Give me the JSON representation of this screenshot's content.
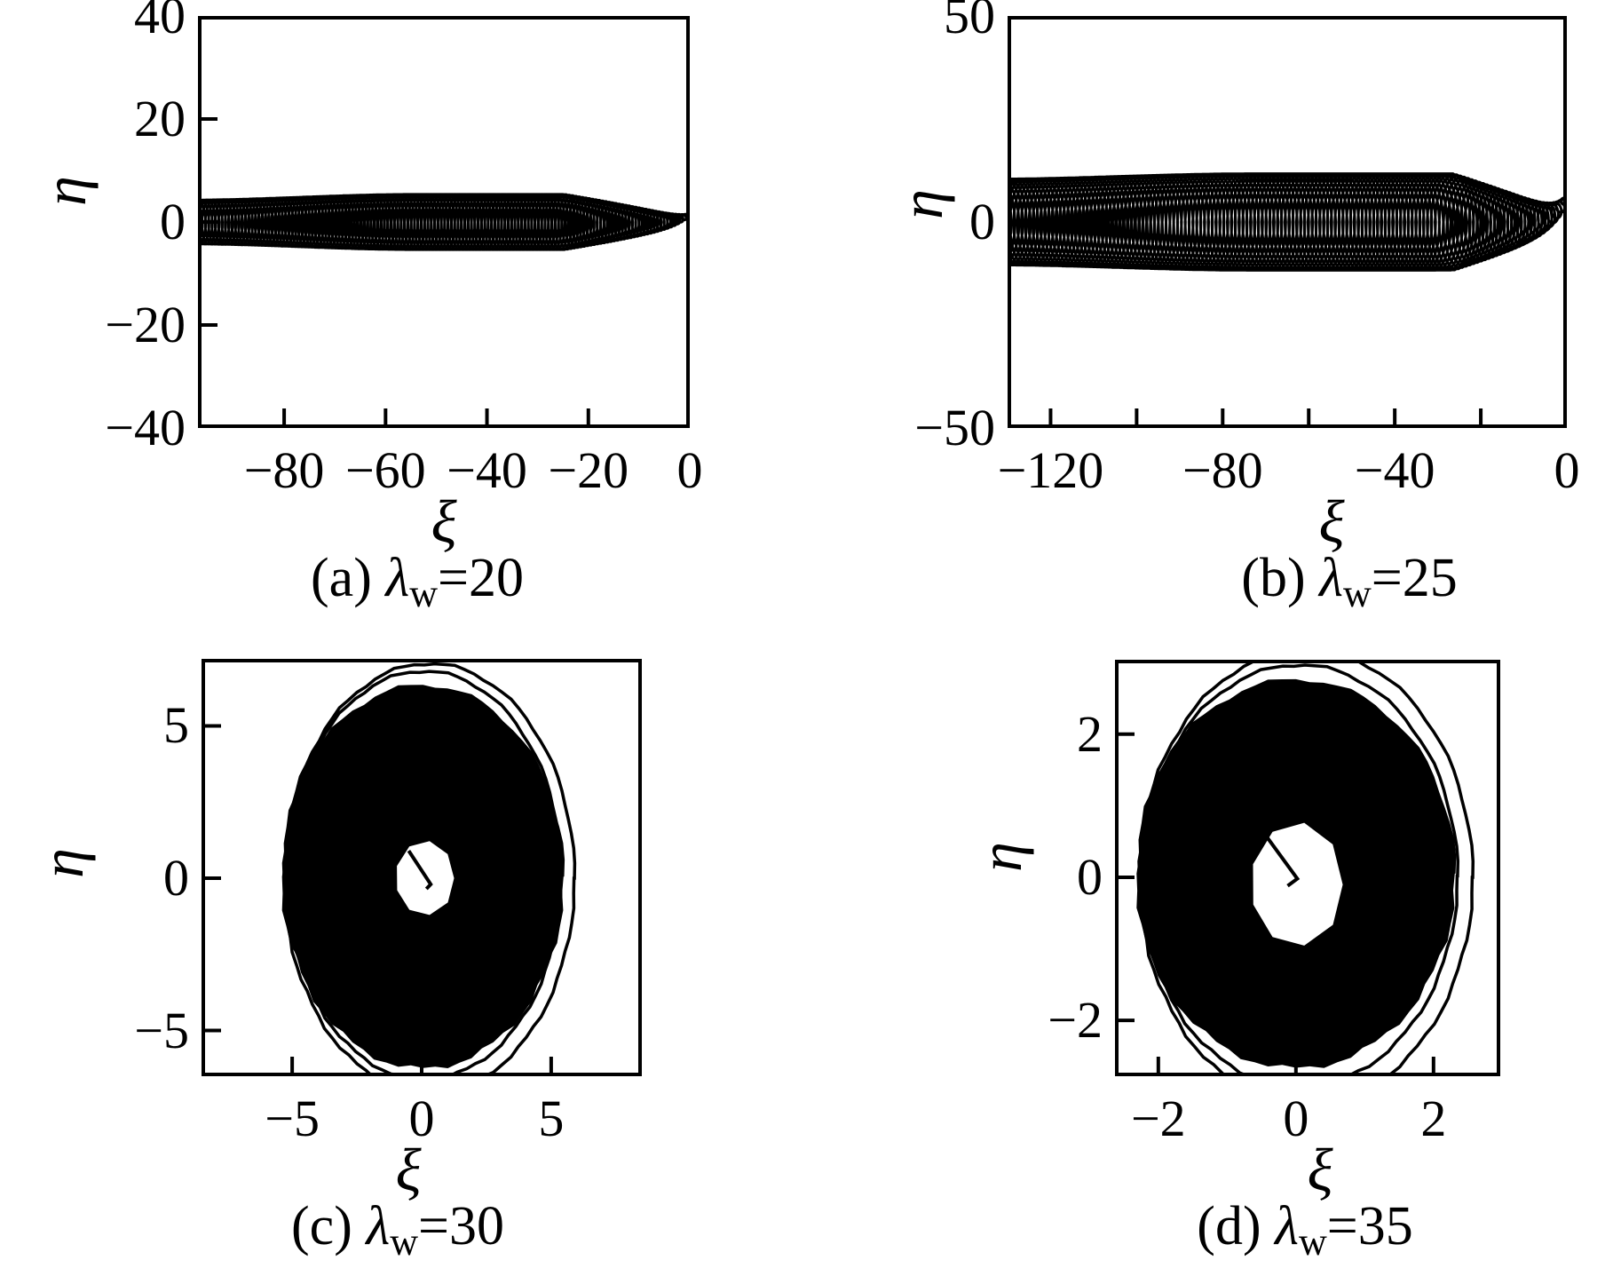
{
  "figure": {
    "background": "#ffffff",
    "ink": "#000000",
    "description": "Four-panel phase-plane plot (xi vs eta) of wave trajectories for different wiggler wavelengths lambda_w"
  },
  "chart_data": [
    {
      "panel": "a",
      "type": "line",
      "caption": {
        "idx": "(a) ",
        "lambda": "λ",
        "sub": "w",
        "value": "=20"
      },
      "caption_text": "(a) λw=20",
      "xlabel": "ξ",
      "ylabel": "η",
      "xlim": [
        -97,
        0
      ],
      "ylim": [
        -40,
        40
      ],
      "xticks": [
        -80,
        -60,
        -40,
        -20,
        0
      ],
      "xtick_labels": [
        "−80",
        "−60",
        "−40",
        "−20",
        "0"
      ],
      "yticks": [
        40,
        20,
        0,
        -20,
        -40
      ],
      "ytick_labels": [
        "40",
        "20",
        "0",
        "−20",
        "−40"
      ],
      "grid": false,
      "series": {
        "kind": "band-spiral",
        "description": "Trajectory enters at (0,≈1.5) and spirals leftward with growing oscillation amplitude, forming a dense black band about η=0 from ξ≈−97 to ξ≈−8 with half-width ≈5; individual loops resolved for ξ>−15",
        "drift_to": -99,
        "amplitude_max": 5.4,
        "amplitude_end": 4.3,
        "grow_frac": 0.25,
        "loops": 150,
        "loop_rx_a": 0.25,
        "loop_rx_b": 0.45,
        "start_eta": 1.5
      }
    },
    {
      "panel": "b",
      "type": "line",
      "caption": {
        "idx": "(b) ",
        "lambda": "λ",
        "sub": "w",
        "value": "=25"
      },
      "caption_text": "(b) λw=25",
      "xlabel": "ξ",
      "ylabel": "η",
      "xlim": [
        -130,
        0
      ],
      "ylim": [
        -50,
        50
      ],
      "xticks": [
        -120,
        -100,
        -80,
        -60,
        -40,
        -20,
        0
      ],
      "xtick_labels": [
        "−120",
        "",
        "−80",
        "",
        "−40",
        "",
        "0"
      ],
      "yticks": [
        50,
        0,
        -50
      ],
      "ytick_labels": [
        "50",
        "0",
        "−50"
      ],
      "grid": false,
      "series": {
        "kind": "band-spiral",
        "description": "Trajectory enters at (0,≈6) and spirals leftward with growing amplitude, forming a dense black band about η=0 from ξ≈−130 to ξ≈−10 with half-width ≈12",
        "drift_to": -134,
        "amplitude_max": 11.8,
        "amplitude_end": 10.5,
        "grow_frac": 0.2,
        "loops": 150,
        "loop_rx_a": 0.3,
        "loop_rx_b": 0.8,
        "start_eta": 6
      }
    },
    {
      "panel": "c",
      "type": "line",
      "caption": {
        "idx": "(c) ",
        "lambda": "λ",
        "sub": "w",
        "value": "=30"
      },
      "caption_text": "(c) λw=30",
      "xlabel": "ξ",
      "ylabel": "η",
      "xlim": [
        -8.5,
        8.5
      ],
      "ylim": [
        -6.5,
        7.2
      ],
      "xticks": [
        -5,
        0,
        5
      ],
      "xtick_labels": [
        "−5",
        "0",
        "5"
      ],
      "yticks": [
        5,
        0,
        -5
      ],
      "ytick_labels": [
        "5",
        "0",
        "−5"
      ],
      "grid": false,
      "series": {
        "kind": "annulus",
        "description": "Bounded quasi-periodic orbit filling a solid black annulus centred near the origin: outer semi-axes ≈5.5(ξ)×6.3(η), white hole ≈1.2 radius near (0.1,0); a short transient line runs from the centre; thin outer contour loops reach η≈±7",
        "center": [
          0.05,
          0.05
        ],
        "outer_rx": 5.45,
        "outer_ry": 6.3,
        "hole_center": [
          0.1,
          0.0
        ],
        "hole_rx": 1.15,
        "hole_ry": 1.2,
        "contours": [
          [
            0.3,
            0.0,
            5.6,
            7.05
          ],
          [
            0.1,
            0.1,
            5.3,
            6.7
          ]
        ],
        "transient": [
          [
            -0.5,
            0.9
          ],
          [
            0.35,
            -0.2
          ],
          [
            0.18,
            -0.35
          ]
        ]
      }
    },
    {
      "panel": "d",
      "type": "line",
      "caption": {
        "idx": "(d) ",
        "lambda": "λ",
        "sub": "w",
        "value": "=35"
      },
      "caption_text": "(d) λw=35",
      "xlabel": "ξ",
      "ylabel": "η",
      "xlim": [
        -2.63,
        2.97
      ],
      "ylim": [
        -2.78,
        3.04
      ],
      "xticks": [
        -2,
        0,
        2
      ],
      "xtick_labels": [
        "−2",
        "0",
        "2"
      ],
      "yticks": [
        2,
        0,
        -2
      ],
      "ytick_labels": [
        "2",
        "0",
        "−2"
      ],
      "grid": false,
      "series": {
        "kind": "annulus",
        "description": "Bounded orbit filling a solid black annulus: outer semi-axes ≈2.3(ξ)×2.7(η), white hole ≈0.7×0.85 near the origin; short transient line from the centre; thin outer contour loops reach η≈±3.1",
        "center": [
          0.0,
          0.05
        ],
        "outer_rx": 2.32,
        "outer_ry": 2.72,
        "hole_center": [
          0.0,
          -0.1
        ],
        "hole_rx": 0.68,
        "hole_ry": 0.85,
        "contours": [
          [
            0.15,
            0.0,
            2.42,
            3.18
          ],
          [
            0.05,
            0.02,
            2.3,
            2.95
          ]
        ],
        "transient": [
          [
            -0.45,
            0.6
          ],
          [
            0.02,
            -0.02
          ],
          [
            -0.12,
            -0.12
          ]
        ]
      }
    }
  ]
}
